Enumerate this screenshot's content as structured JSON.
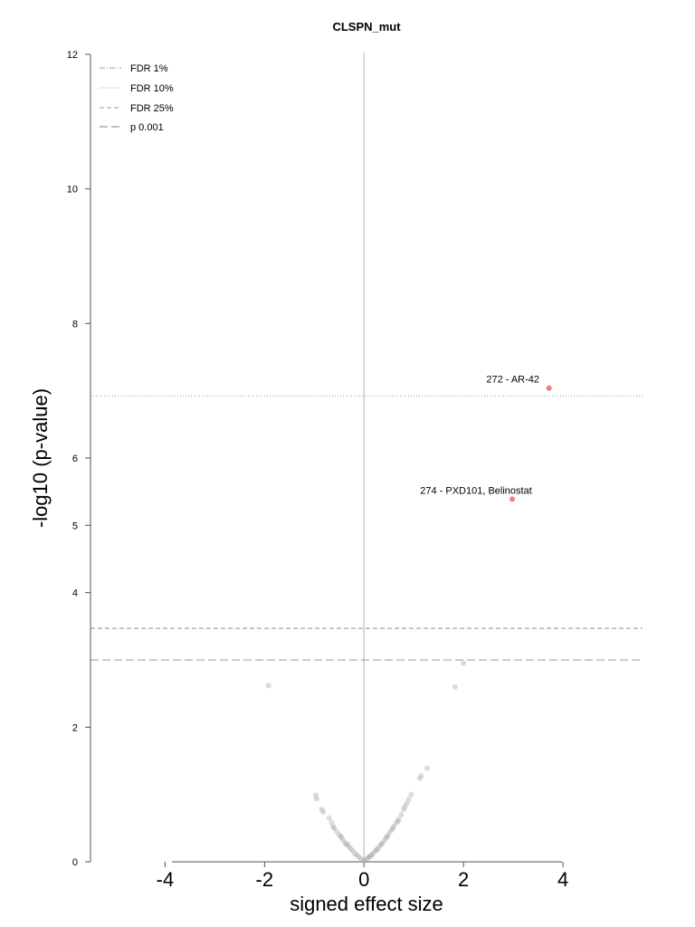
{
  "chart_data": {
    "type": "scatter",
    "title": "CLSPN_mut",
    "xlabel": "signed effect size",
    "ylabel": "-log10 (p-value)",
    "xlim": [
      -5.5,
      5.6
    ],
    "ylim": [
      0,
      12
    ],
    "x_ticks": [
      -4,
      -2,
      0,
      2,
      4
    ],
    "y_ticks": [
      0,
      2,
      4,
      5,
      6,
      8,
      10,
      12
    ],
    "grid": false,
    "legend_position": "top-left",
    "legend": [
      {
        "label": "FDR 1%",
        "style": "dashdot"
      },
      {
        "label": "FDR 10%",
        "style": "dotted"
      },
      {
        "label": "FDR 25%",
        "style": "dashed"
      },
      {
        "label": "p 0.001",
        "style": "longdash"
      }
    ],
    "threshold_lines": [
      {
        "name": "FDR 10%",
        "y": 6.92,
        "style": "dotted"
      },
      {
        "name": "FDR 25%",
        "y": 3.47,
        "style": "dashed"
      },
      {
        "name": "p 0.001",
        "y": 3.0,
        "style": "longdash"
      }
    ],
    "zero_line_x": 0,
    "colors": {
      "significant": "#f08080",
      "nonsignificant": "#b0b0b0",
      "threshold": "#9a9a9a",
      "axis": "#555555",
      "zero_line": "#cccccc"
    },
    "highlighted_points": [
      {
        "x": 3.72,
        "y": 7.04,
        "label": "272 - AR-42"
      },
      {
        "x": 2.98,
        "y": 5.39,
        "label": "274 - PXD101, Belinostat"
      }
    ],
    "points": [
      [
        -1.92,
        2.62
      ],
      [
        1.83,
        2.6
      ],
      [
        2.0,
        2.95
      ],
      [
        1.27,
        1.39
      ],
      [
        1.15,
        1.28
      ],
      [
        1.12,
        1.24
      ],
      [
        -0.97,
        0.99
      ],
      [
        -0.95,
        0.94
      ],
      [
        -0.85,
        0.78
      ],
      [
        -0.82,
        0.74
      ],
      [
        -0.7,
        0.65
      ],
      [
        -0.65,
        0.58
      ],
      [
        -0.6,
        0.5
      ],
      [
        -0.55,
        0.45
      ],
      [
        -0.5,
        0.4
      ],
      [
        -0.45,
        0.36
      ],
      [
        -0.42,
        0.32
      ],
      [
        -0.38,
        0.28
      ],
      [
        -0.35,
        0.25
      ],
      [
        -0.3,
        0.22
      ],
      [
        -0.26,
        0.19
      ],
      [
        -0.22,
        0.16
      ],
      [
        -0.18,
        0.12
      ],
      [
        -0.14,
        0.1
      ],
      [
        -0.1,
        0.07
      ],
      [
        -0.06,
        0.04
      ],
      [
        -0.02,
        0.02
      ],
      [
        0.02,
        0.02
      ],
      [
        0.05,
        0.04
      ],
      [
        0.08,
        0.06
      ],
      [
        0.12,
        0.08
      ],
      [
        0.16,
        0.11
      ],
      [
        0.2,
        0.14
      ],
      [
        0.24,
        0.17
      ],
      [
        0.28,
        0.2
      ],
      [
        0.32,
        0.24
      ],
      [
        0.36,
        0.27
      ],
      [
        0.4,
        0.31
      ],
      [
        0.44,
        0.35
      ],
      [
        0.48,
        0.39
      ],
      [
        0.52,
        0.44
      ],
      [
        0.56,
        0.48
      ],
      [
        0.6,
        0.53
      ],
      [
        0.65,
        0.58
      ],
      [
        0.7,
        0.63
      ],
      [
        0.75,
        0.7
      ],
      [
        0.8,
        0.78
      ],
      [
        0.82,
        0.82
      ],
      [
        0.86,
        0.87
      ],
      [
        0.9,
        0.93
      ],
      [
        0.95,
        1.0
      ],
      [
        0.46,
        0.37
      ],
      [
        0.58,
        0.5
      ],
      [
        0.68,
        0.6
      ],
      [
        0.15,
        0.1
      ],
      [
        0.26,
        0.18
      ],
      [
        -0.33,
        0.26
      ],
      [
        -0.47,
        0.38
      ],
      [
        -0.62,
        0.52
      ],
      [
        0.1,
        0.07
      ],
      [
        0.35,
        0.26
      ]
    ]
  }
}
